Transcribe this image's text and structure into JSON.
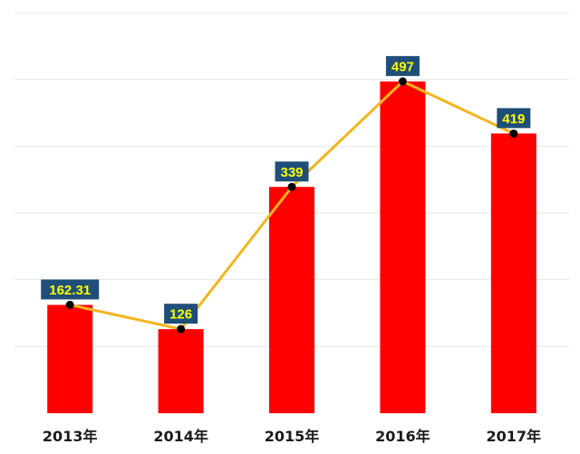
{
  "chart_data": {
    "type": "bar",
    "categories": [
      "2013年",
      "2014年",
      "2015年",
      "2016年",
      "2017年"
    ],
    "values": [
      162.31,
      126,
      339,
      497,
      419
    ],
    "data_labels": [
      "162.31",
      "126",
      "339",
      "497",
      "419"
    ],
    "overlay": "line",
    "title": "",
    "xlabel": "",
    "ylabel": "",
    "ylim": [
      0,
      600
    ],
    "grid": true,
    "legend": "none",
    "colors": {
      "bar": "#ff0000",
      "line": "#f2b51e",
      "marker": "#000000",
      "label_bg": "#1f4e79",
      "label_text": "#ffff00"
    }
  }
}
